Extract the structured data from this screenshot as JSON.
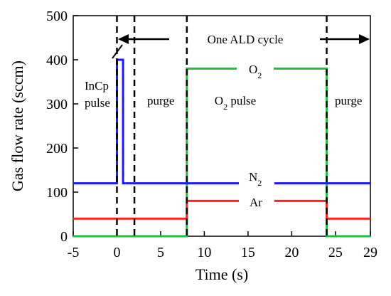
{
  "chart_data": {
    "type": "line",
    "xlabel": "Time (s)",
    "ylabel": "Gas flow rate (sccm)",
    "xlim": [
      -5,
      29
    ],
    "ylim": [
      0,
      500
    ],
    "x_ticks": [
      -5,
      0,
      5,
      10,
      15,
      20,
      25,
      29
    ],
    "x_tick_labels": [
      "-5",
      "0",
      "5",
      "10",
      "15",
      "20",
      "25",
      "29"
    ],
    "y_ticks": [
      0,
      100,
      200,
      300,
      400,
      500
    ],
    "y_tick_labels": [
      "0",
      "100",
      "200",
      "300",
      "400",
      "500"
    ],
    "grid": false,
    "colors": {
      "InCp": "#1a1aff",
      "N2": "#1a1aff",
      "Ar": "#ff2020",
      "O2": "#22bb44"
    },
    "series": [
      {
        "key": "InCp",
        "x": [
          -5,
          0,
          0,
          0.7,
          0.7,
          1
        ],
        "y": [
          120,
          120,
          400,
          400,
          120,
          120
        ]
      },
      {
        "key": "N2",
        "x": [
          1,
          29
        ],
        "y": [
          120,
          120
        ]
      },
      {
        "key": "Ar",
        "x": [
          -5,
          8,
          8,
          24,
          24,
          29
        ],
        "y": [
          40,
          40,
          80,
          80,
          40,
          40
        ]
      },
      {
        "key": "O2",
        "x": [
          -5,
          8,
          8,
          24,
          24,
          29
        ],
        "y": [
          0,
          0,
          380,
          380,
          0,
          0
        ]
      }
    ],
    "phase_boundaries": [
      0,
      2,
      8,
      24
    ],
    "annotations": {
      "cycle_label": "One ALD cycle",
      "incp_line1": "InCp",
      "incp_line2": "pulse",
      "purge1": "purge",
      "o2pulse_main": "O",
      "o2pulse_sub": "2",
      "o2pulse_rest": " pulse",
      "purge2": "purge",
      "o2_label_main": "O",
      "o2_label_sub": "2",
      "n2_label_main": "N",
      "n2_label_sub": "2",
      "ar_label": "Ar"
    }
  }
}
